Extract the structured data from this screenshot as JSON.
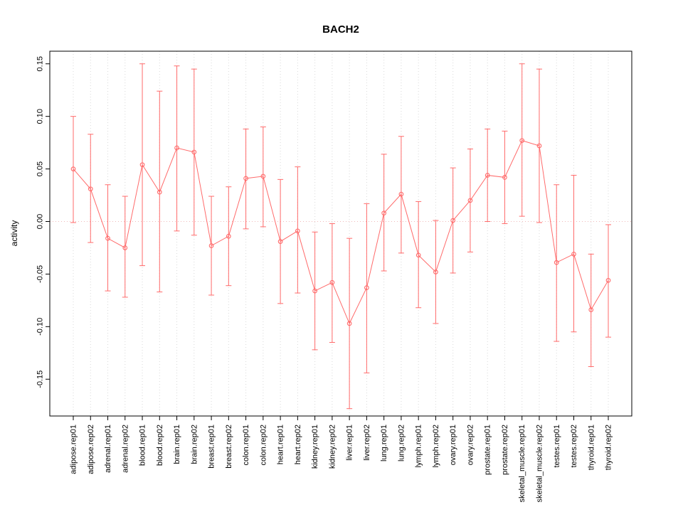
{
  "chart_data": {
    "type": "line",
    "title": "BACH2",
    "ylabel": "activity",
    "xlabel": "",
    "ylim": [
      -0.185,
      0.162
    ],
    "grid": true,
    "legend": "none",
    "categories": [
      "adipose.rep01",
      "adipose.rep02",
      "adrenal.rep01",
      "adrenal.rep02",
      "blood.rep01",
      "blood.rep02",
      "brain.rep01",
      "brain.rep02",
      "breast.rep01",
      "breast.rep02",
      "colon.rep01",
      "colon.rep02",
      "heart.rep01",
      "heart.rep02",
      "kidney.rep01",
      "kidney.rep02",
      "liver.rep01",
      "liver.rep02",
      "lung.rep01",
      "lung.rep02",
      "lymph.rep01",
      "lymph.rep02",
      "ovary.rep01",
      "ovary.rep02",
      "prostate.rep01",
      "prostate.rep02",
      "skeletal_muscle.rep01",
      "skeletal_muscle.rep02",
      "testes.rep01",
      "testes.rep02",
      "thyroid.rep01",
      "thyroid.rep02"
    ],
    "series": [
      {
        "name": "activity",
        "values": [
          0.05,
          0.031,
          -0.016,
          -0.025,
          0.054,
          0.028,
          0.07,
          0.066,
          -0.023,
          -0.014,
          0.041,
          0.043,
          -0.019,
          -0.009,
          -0.066,
          -0.058,
          -0.097,
          -0.063,
          0.008,
          0.026,
          -0.032,
          -0.048,
          0.001,
          0.02,
          0.044,
          0.042,
          0.077,
          0.072,
          -0.039,
          -0.031,
          -0.084,
          -0.056
        ],
        "lower": [
          -0.001,
          -0.02,
          -0.066,
          -0.072,
          -0.042,
          -0.067,
          -0.009,
          -0.013,
          -0.07,
          -0.061,
          -0.007,
          -0.005,
          -0.078,
          -0.068,
          -0.122,
          -0.115,
          -0.178,
          -0.144,
          -0.047,
          -0.03,
          -0.082,
          -0.097,
          -0.049,
          -0.029,
          0.0,
          -0.002,
          0.005,
          -0.001,
          -0.114,
          -0.105,
          -0.138,
          -0.11
        ],
        "upper": [
          0.1,
          0.083,
          0.035,
          0.024,
          0.15,
          0.124,
          0.148,
          0.145,
          0.024,
          0.033,
          0.088,
          0.09,
          0.04,
          0.052,
          -0.01,
          -0.002,
          -0.016,
          0.017,
          0.064,
          0.081,
          0.019,
          0.001,
          0.051,
          0.069,
          0.088,
          0.086,
          0.15,
          0.145,
          0.035,
          0.044,
          -0.031,
          -0.003
        ]
      }
    ],
    "ytick_values": [
      -0.15,
      -0.1,
      -0.05,
      0.0,
      0.05,
      0.1,
      0.15
    ],
    "ytick_labels": [
      "-0.15",
      "-0.10",
      "-0.05",
      "0.00",
      "0.05",
      "0.10",
      "0.15"
    ],
    "colors": {
      "series": "#ff6b6b",
      "grid": "#d9d9d9",
      "zero_line": "#f0b8b8",
      "axis": "#000000",
      "background": "#ffffff"
    }
  }
}
